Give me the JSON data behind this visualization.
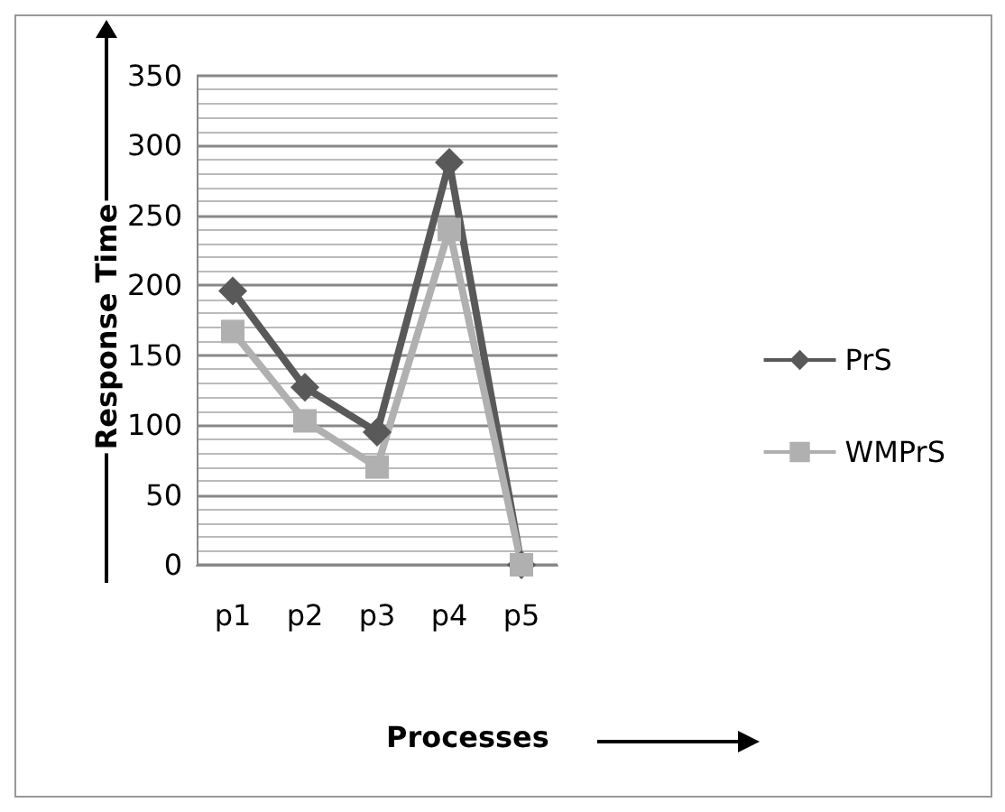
{
  "chart_data": {
    "type": "line",
    "xlabel": "Processes",
    "ylabel": "Response Time",
    "categories": [
      "p1",
      "p2",
      "p3",
      "p4",
      "p5"
    ],
    "series": [
      {
        "name": "PrS",
        "color": "#595959",
        "marker": "diamond",
        "values": [
          196,
          127,
          95,
          288,
          0
        ]
      },
      {
        "name": "WMPrS",
        "color": "#b0b0b0",
        "marker": "square",
        "values": [
          167,
          103,
          70,
          240,
          0
        ]
      }
    ],
    "ylim": [
      0,
      350
    ],
    "yticks": [
      0,
      50,
      100,
      150,
      200,
      250,
      300,
      350
    ],
    "grid": "y",
    "legend": "right"
  }
}
